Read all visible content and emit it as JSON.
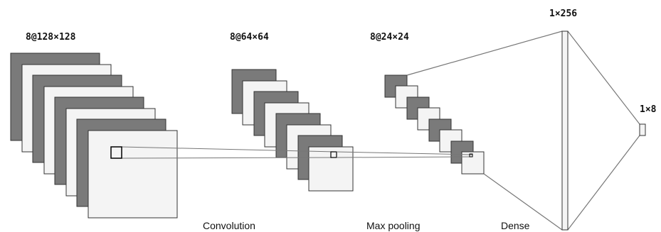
{
  "diagram": {
    "stage_labels": {
      "input": "8@128×128",
      "conv_out": "8@64×64",
      "pool_out": "8@24×24",
      "dense": "1×256",
      "output": "1×8"
    },
    "operation_labels": {
      "convolution": "Convolution",
      "max_pooling": "Max pooling",
      "dense": "Dense"
    },
    "colors": {
      "dark_map": "#7a7a7a",
      "light_map": "#f4f4f4",
      "outline": "#333333",
      "connector": "#777777",
      "kernel": "#000000"
    }
  }
}
